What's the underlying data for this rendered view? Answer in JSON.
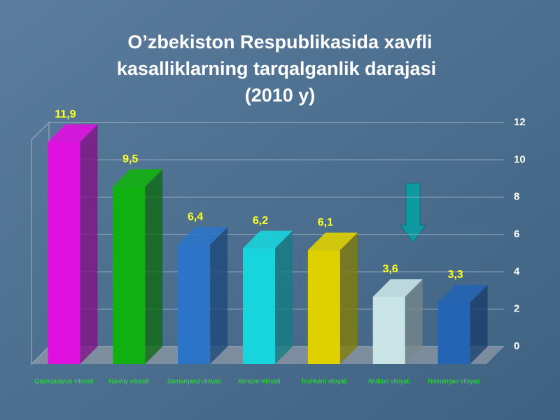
{
  "chart_data": {
    "type": "bar3d",
    "title": [
      "O’zbekiston Respublikasida xavfli",
      "kasalliklarning tarqalganlik darajasi",
      "(2010 y)"
    ],
    "categories": [
      "Qashqadaryo viloyati",
      "Navoiy viloyati",
      "Samarqand viloyati",
      "Xorazm viloyati",
      "Toshkent viloyati",
      "Andijon viloyati",
      "Namangan viloyati"
    ],
    "values": [
      11.9,
      9.5,
      6.4,
      6.2,
      6.1,
      3.6,
      3.3
    ],
    "value_labels": [
      "11,9",
      "9,5",
      "6,4",
      "6,2",
      "6,1",
      "3,6",
      "3,3"
    ],
    "colors": [
      "#e010e0",
      "#10b010",
      "#2c74c8",
      "#18d4dc",
      "#e0d000",
      "#c8e4e4",
      "#2464b4"
    ],
    "ylim": [
      0,
      12
    ],
    "yticks": [
      0,
      2,
      4,
      6,
      8,
      10,
      12
    ],
    "grid": true
  }
}
